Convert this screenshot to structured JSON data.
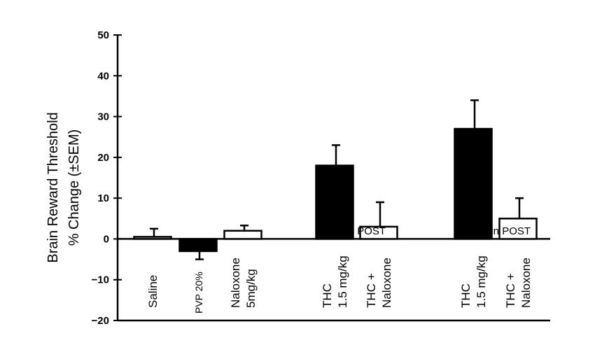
{
  "chart_data": {
    "type": "bar",
    "ylabel_lines": [
      "Brain Reward  Threshold",
      "% Change  (±SEM)"
    ],
    "ylim": [
      -20,
      50
    ],
    "yticks": [
      50,
      40,
      30,
      20,
      10,
      0,
      -10,
      -20
    ],
    "categories": [
      {
        "label_lines": [
          "Saline"
        ],
        "value": 0.5,
        "error": 2.0,
        "fill": "white",
        "small": false
      },
      {
        "label_lines": [
          "PVP 20%"
        ],
        "value": -3.0,
        "error": 2.0,
        "fill": "black",
        "small": true
      },
      {
        "label_lines": [
          "Naloxone",
          "5mg/kg"
        ],
        "value": 2.0,
        "error": 1.3,
        "fill": "white",
        "small": false
      },
      {
        "label_lines": [
          "THC",
          "1.5 mg/kg"
        ],
        "value": 18.0,
        "error": 5.0,
        "fill": "black",
        "small": false
      },
      {
        "label_lines": [
          "THC +",
          "Naloxone"
        ],
        "value": 3.0,
        "error": 6.0,
        "fill": "white",
        "small": false
      },
      {
        "label_lines": [
          "THC",
          "1.5 mg/kg"
        ],
        "value": 27.0,
        "error": 7.0,
        "fill": "black",
        "small": false
      },
      {
        "label_lines": [
          "THC +",
          "Naloxone"
        ],
        "value": 5.0,
        "error": 5.0,
        "fill": "white",
        "small": false
      }
    ],
    "annotations": [
      "15 min POST",
      "30 min POST"
    ],
    "grid": false,
    "colors": {
      "filled": "#000000",
      "open": "#ffffff",
      "stroke": "#000000"
    }
  }
}
